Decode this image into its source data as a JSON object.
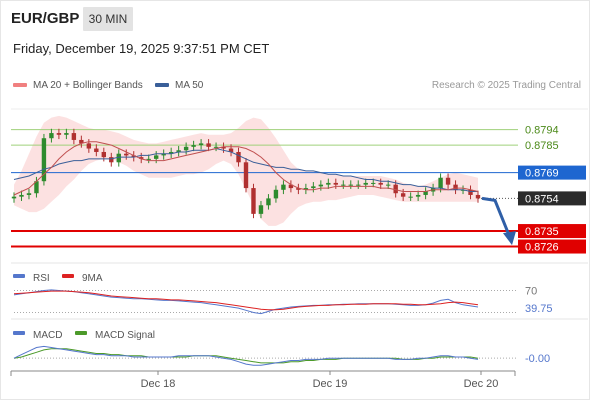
{
  "header": {
    "symbol": "EUR/GBP",
    "timeframe": "30 MIN",
    "datetime": "Friday, December 19, 2025 9:37:51 PM CET"
  },
  "legend": {
    "ma20_label": "MA 20 + Bollinger Bands",
    "ma50_label": "MA 50",
    "credit": "Research © 2025 Trading Central"
  },
  "colors": {
    "ma20": "#f08080",
    "ma50": "#3a5f99",
    "bands_fill": "#fbdcdc",
    "up_candle": "#2e8b2e",
    "down_candle": "#b03030",
    "resistance": "#9fd07a",
    "pivot": "#1e66d0",
    "support": "#e00000",
    "arrow": "#2f5fa7",
    "rsi": "#5577cc",
    "rsi_ma": "#dd2222",
    "macd": "#5577cc",
    "macd_signal": "#4c9a2a"
  },
  "chart_data": [
    {
      "type": "line",
      "panel": "price",
      "ylim": [
        0.8717,
        0.8806
      ],
      "x_tick_labels": [
        "Dec 18",
        "Dec 19",
        "Dec 20"
      ],
      "levels": [
        {
          "name": "resistance",
          "value": 0.8794,
          "label": "0.8794"
        },
        {
          "name": "resistance",
          "value": 0.8785,
          "label": "0.8785"
        },
        {
          "name": "pivot",
          "value": 0.8769,
          "label": "0.8769"
        },
        {
          "name": "last",
          "value": 0.8754,
          "label": "0.8754"
        },
        {
          "name": "support",
          "value": 0.8735,
          "label": "0.8735"
        },
        {
          "name": "support",
          "value": 0.8726,
          "label": "0.8726"
        }
      ],
      "series": [
        {
          "name": "MA 20",
          "values": [
            0.8756,
            0.8758,
            0.876,
            0.8764,
            0.8768,
            0.8772,
            0.8777,
            0.8781,
            0.8784,
            0.8786,
            0.8787,
            0.8787,
            0.8786,
            0.8785,
            0.8783,
            0.8781,
            0.8779,
            0.8777,
            0.8776,
            0.8776,
            0.8776,
            0.8777,
            0.8778,
            0.8779,
            0.878,
            0.8781,
            0.8782,
            0.8783,
            0.8784,
            0.8784,
            0.8784,
            0.8783,
            0.8781,
            0.8778,
            0.8774,
            0.8769,
            0.8765,
            0.8762,
            0.876,
            0.8759,
            0.8759,
            0.876,
            0.876,
            0.8761,
            0.8761,
            0.8761,
            0.8761,
            0.8761,
            0.8761,
            0.876,
            0.876,
            0.8759,
            0.8758,
            0.8758,
            0.8758,
            0.8758,
            0.8759,
            0.8759,
            0.8759,
            0.876,
            0.876,
            0.8759,
            0.8758
          ]
        },
        {
          "name": "MA 50",
          "values": [
            0.8765,
            0.8766,
            0.8767,
            0.8769,
            0.8771,
            0.8772,
            0.8774,
            0.8775,
            0.8776,
            0.8776,
            0.8777,
            0.8777,
            0.8777,
            0.8777,
            0.8778,
            0.8778,
            0.8778,
            0.8779,
            0.8779,
            0.878,
            0.878,
            0.878,
            0.8781,
            0.8781,
            0.8782,
            0.8782,
            0.8782,
            0.8783,
            0.8782,
            0.8781,
            0.8779,
            0.8777,
            0.8775,
            0.8774,
            0.8773,
            0.8772,
            0.8772,
            0.8771,
            0.8771,
            0.877,
            0.877,
            0.8769,
            0.8768,
            0.8768,
            0.8767,
            0.8767,
            0.8766,
            0.8765,
            0.8765,
            0.8764,
            0.8764,
            0.8763,
            0.8762,
            0.8762,
            0.8761,
            0.8761,
            0.876,
            0.876,
            0.8759,
            0.8759,
            0.8759,
            0.8758,
            0.8758
          ]
        },
        {
          "name": "Upper Band",
          "values": [
            0.8762,
            0.877,
            0.878,
            0.879,
            0.8798,
            0.8801,
            0.8802,
            0.8801,
            0.8799,
            0.8797,
            0.8795,
            0.8794,
            0.8794,
            0.8793,
            0.8792,
            0.879,
            0.8788,
            0.8787,
            0.8786,
            0.8786,
            0.8787,
            0.8788,
            0.8789,
            0.879,
            0.8791,
            0.8792,
            0.8791,
            0.8791,
            0.8791,
            0.8792,
            0.8795,
            0.8799,
            0.8801,
            0.88,
            0.8795,
            0.8789,
            0.8782,
            0.8775,
            0.8771,
            0.877,
            0.877,
            0.8769,
            0.8768,
            0.8768,
            0.8767,
            0.8767,
            0.8767,
            0.8767,
            0.8767,
            0.8767,
            0.8766,
            0.8765,
            0.8763,
            0.8762,
            0.8761,
            0.8762,
            0.8764,
            0.8766,
            0.8768,
            0.8769,
            0.8768,
            0.8767,
            0.8766
          ]
        },
        {
          "name": "Lower Band",
          "values": [
            0.875,
            0.8748,
            0.8746,
            0.8746,
            0.8748,
            0.8752,
            0.8756,
            0.8761,
            0.8765,
            0.877,
            0.8774,
            0.8776,
            0.8777,
            0.8777,
            0.8775,
            0.8773,
            0.877,
            0.8768,
            0.8766,
            0.8766,
            0.8766,
            0.8766,
            0.8767,
            0.8768,
            0.8768,
            0.8769,
            0.8771,
            0.8774,
            0.8776,
            0.8774,
            0.8768,
            0.8759,
            0.875,
            0.8742,
            0.8738,
            0.8738,
            0.874,
            0.8745,
            0.8749,
            0.8751,
            0.8752,
            0.8752,
            0.8753,
            0.8753,
            0.8754,
            0.8755,
            0.8756,
            0.8756,
            0.8756,
            0.8755,
            0.8754,
            0.8753,
            0.8752,
            0.8752,
            0.8752,
            0.8752,
            0.8752,
            0.8752,
            0.8752,
            0.8752,
            0.8752,
            0.8752,
            0.8752
          ]
        },
        {
          "name": "Close",
          "values": [
            0.8755,
            0.8756,
            0.8757,
            0.8764,
            0.8789,
            0.8792,
            0.8791,
            0.8792,
            0.8788,
            0.8786,
            0.8783,
            0.8781,
            0.8778,
            0.8775,
            0.878,
            0.8779,
            0.8778,
            0.8777,
            0.8777,
            0.8779,
            0.878,
            0.8781,
            0.8782,
            0.8784,
            0.8785,
            0.8786,
            0.8784,
            0.8784,
            0.8783,
            0.8781,
            0.8775,
            0.876,
            0.8745,
            0.875,
            0.8754,
            0.8759,
            0.8762,
            0.876,
            0.8759,
            0.876,
            0.8761,
            0.8762,
            0.8763,
            0.8762,
            0.8762,
            0.8762,
            0.8762,
            0.8763,
            0.8763,
            0.8762,
            0.8762,
            0.8757,
            0.8755,
            0.8755,
            0.8756,
            0.8758,
            0.876,
            0.8766,
            0.8762,
            0.8759,
            0.8759,
            0.8756,
            0.8754
          ]
        }
      ]
    },
    {
      "type": "line",
      "panel": "rsi",
      "title": "RSI",
      "ylim": [
        20,
        80
      ],
      "tick_labels": [
        "70",
        "39.75"
      ],
      "series": [
        {
          "name": "RSI",
          "values": [
            62,
            64,
            66,
            68,
            70,
            71,
            70,
            69,
            68,
            66,
            64,
            62,
            60,
            58,
            57,
            56,
            55,
            55,
            54,
            53,
            52,
            52,
            51,
            50,
            49,
            48,
            46,
            44,
            42,
            40,
            38,
            34,
            30,
            28,
            32,
            36,
            38,
            40,
            41,
            42,
            43,
            43,
            44,
            44,
            45,
            45,
            46,
            46,
            46,
            46,
            46,
            45,
            44,
            43,
            43,
            44,
            47,
            52,
            54,
            48,
            44,
            42,
            40
          ]
        },
        {
          "name": "9MA",
          "values": [
            64,
            65,
            66,
            67,
            68,
            69,
            69,
            69,
            68,
            67,
            66,
            64,
            62,
            60,
            59,
            58,
            57,
            56,
            55,
            55,
            54,
            53,
            53,
            52,
            51,
            50,
            49,
            48,
            46,
            44,
            42,
            40,
            38,
            36,
            35,
            35,
            36,
            38,
            40,
            41,
            42,
            43,
            43,
            44,
            44,
            45,
            45,
            45,
            46,
            46,
            46,
            46,
            45,
            45,
            44,
            44,
            45,
            46,
            48,
            49,
            48,
            46,
            44
          ]
        }
      ]
    },
    {
      "type": "line",
      "panel": "macd",
      "title": "MACD",
      "ylim": [
        -0.001,
        0.0012
      ],
      "tick_labels": [
        "-0.00"
      ],
      "series": [
        {
          "name": "MACD",
          "values": [
            0.0,
            0.0003,
            0.0006,
            0.0009,
            0.001,
            0.0009,
            0.0008,
            0.0007,
            0.0006,
            0.0005,
            0.0004,
            0.0003,
            0.0003,
            0.0002,
            0.0002,
            0.0002,
            0.0001,
            0.0001,
            0.0001,
            0.0001,
            0.0001,
            0.0001,
            0.0002,
            0.0002,
            0.0002,
            0.0002,
            0.0002,
            0.0001,
            0.0,
            -0.0001,
            -0.0003,
            -0.0005,
            -0.0006,
            -0.0006,
            -0.0005,
            -0.0004,
            -0.0003,
            -0.0002,
            -0.0002,
            -0.0001,
            -0.0001,
            -0.0001,
            0.0,
            0.0,
            0.0,
            0.0,
            0.0,
            0.0,
            0.0,
            0.0,
            0.0,
            -0.0001,
            -0.0001,
            -0.0001,
            0.0,
            0.0,
            0.0001,
            0.0002,
            0.0002,
            0.0001,
            0.0001,
            0.0,
            -0.0001
          ]
        },
        {
          "name": "MACD Signal",
          "values": [
            0.0,
            0.0001,
            0.0003,
            0.0005,
            0.0007,
            0.0008,
            0.0008,
            0.0008,
            0.0007,
            0.0006,
            0.0005,
            0.0004,
            0.0004,
            0.0003,
            0.0003,
            0.0002,
            0.0002,
            0.0002,
            0.0001,
            0.0001,
            0.0001,
            0.0001,
            0.0001,
            0.0001,
            0.0002,
            0.0002,
            0.0002,
            0.0002,
            0.0001,
            0.0,
            -0.0001,
            -0.0002,
            -0.0003,
            -0.0004,
            -0.0004,
            -0.0004,
            -0.0004,
            -0.0003,
            -0.0003,
            -0.0002,
            -0.0002,
            -0.0001,
            -0.0001,
            -0.0001,
            0.0,
            0.0,
            0.0,
            0.0,
            0.0,
            0.0,
            0.0,
            0.0,
            -0.0001,
            -0.0001,
            -0.0001,
            0.0,
            0.0,
            0.0001,
            0.0001,
            0.0001,
            0.0001,
            0.0001,
            0.0
          ]
        }
      ]
    }
  ],
  "rsi_legend": {
    "rsi": "RSI",
    "ma": "9MA"
  },
  "macd_legend": {
    "macd": "MACD",
    "signal": "MACD Signal"
  }
}
